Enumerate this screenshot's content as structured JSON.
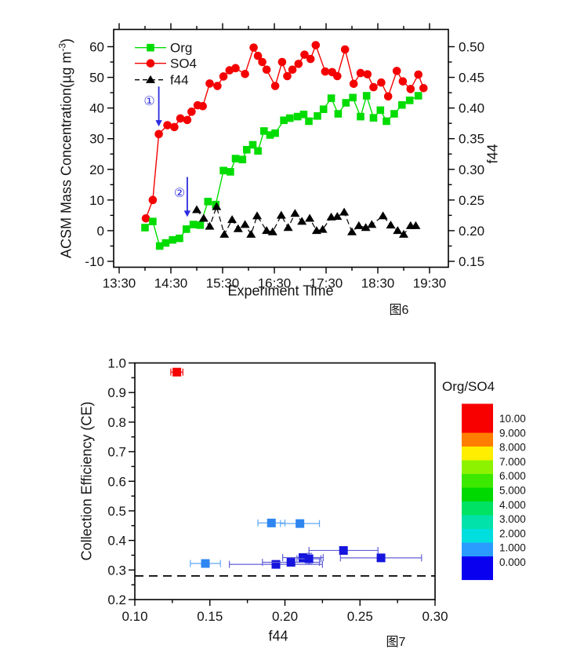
{
  "page": {
    "background": "#ffffff"
  },
  "chart_data": [
    {
      "id": "fig6",
      "type": "line",
      "caption": "图6",
      "x_axis": {
        "label": "Experiment Time",
        "tick_labels": [
          "13:30",
          "14:30",
          "15:30",
          "16:30",
          "17:30",
          "18:30",
          "19:30"
        ],
        "tick_minutes": [
          0,
          60,
          120,
          180,
          240,
          300,
          360
        ]
      },
      "y_left": {
        "label_main": "ACSM Mass Concentration(µg m",
        "label_sup": "-3",
        "label_end": ")",
        "ticks": [
          -10,
          0,
          10,
          20,
          30,
          40,
          50,
          60
        ],
        "range": [
          -10,
          60
        ]
      },
      "y_right": {
        "label": "f44",
        "ticks": [
          "0.15",
          "0.20",
          "0.25",
          "0.30",
          "0.35",
          "0.40",
          "0.45",
          "0.50"
        ],
        "range": [
          0.15,
          0.5
        ]
      },
      "legend": [
        {
          "name": "Org",
          "color": "#00dc00",
          "marker": "square",
          "dashed": false
        },
        {
          "name": "SO4",
          "color": "#f40000",
          "marker": "circle",
          "dashed": false
        },
        {
          "name": "f44",
          "color": "#000000",
          "marker": "triangle",
          "dashed": true
        }
      ],
      "series": {
        "org": {
          "axis": "left",
          "color": "#00dc00",
          "points": [
            [
              30,
              1
            ],
            [
              39,
              3
            ],
            [
              47,
              -5
            ],
            [
              54,
              -4
            ],
            [
              62,
              -3
            ],
            [
              70,
              -2.5
            ],
            [
              78,
              0.5
            ],
            [
              86,
              2
            ],
            [
              94,
              1.8
            ],
            [
              103,
              9.5
            ],
            [
              112,
              8.5
            ],
            [
              121,
              19.6
            ],
            [
              129,
              19.2
            ],
            [
              135,
              23.5
            ],
            [
              143,
              23.2
            ],
            [
              148,
              26.4
            ],
            [
              155,
              28
            ],
            [
              161,
              26
            ],
            [
              168,
              32.5
            ],
            [
              175,
              31.2
            ],
            [
              181,
              31.8
            ],
            [
              191,
              36
            ],
            [
              198,
              36.7
            ],
            [
              207,
              37.2
            ],
            [
              214,
              37.9
            ],
            [
              220,
              35.7
            ],
            [
              230,
              37.4
            ],
            [
              237,
              39.6
            ],
            [
              246,
              43.2
            ],
            [
              254,
              38.1
            ],
            [
              263,
              41.7
            ],
            [
              271,
              43.4
            ],
            [
              280,
              37.2
            ],
            [
              287,
              44
            ],
            [
              295,
              36.8
            ],
            [
              303,
              39.3
            ],
            [
              310,
              35.7
            ],
            [
              319,
              38.1
            ],
            [
              328,
              41
            ],
            [
              337,
              42.5
            ],
            [
              347,
              44
            ]
          ]
        },
        "so4": {
          "axis": "left",
          "color": "#f40000",
          "points": [
            [
              31,
              4
            ],
            [
              39,
              10
            ],
            [
              46,
              31.5
            ],
            [
              56,
              34.4
            ],
            [
              64,
              33.8
            ],
            [
              71,
              36.6
            ],
            [
              79,
              36.1
            ],
            [
              84,
              38.8
            ],
            [
              91,
              40.9
            ],
            [
              97,
              40.6
            ],
            [
              105,
              48
            ],
            [
              114,
              47.2
            ],
            [
              121,
              50.3
            ],
            [
              128,
              52.3
            ],
            [
              135,
              53
            ],
            [
              146,
              51.1
            ],
            [
              156,
              59.7
            ],
            [
              161,
              57
            ],
            [
              166,
              55
            ],
            [
              171,
              52.5
            ],
            [
              181,
              47.2
            ],
            [
              189,
              55
            ],
            [
              195,
              50.4
            ],
            [
              201,
              52.5
            ],
            [
              208,
              54.4
            ],
            [
              215,
              57.4
            ],
            [
              222,
              56
            ],
            [
              228,
              60.5
            ],
            [
              239,
              51.9
            ],
            [
              247,
              51.7
            ],
            [
              253,
              50.4
            ],
            [
              262,
              59.1
            ],
            [
              272,
              47.9
            ],
            [
              280,
              51.4
            ],
            [
              288,
              51
            ],
            [
              295,
              46.8
            ],
            [
              304,
              48.3
            ],
            [
              312,
              43.8
            ],
            [
              322,
              52.1
            ],
            [
              329,
              48.7
            ],
            [
              338,
              46.2
            ],
            [
              347,
              50.9
            ],
            [
              353,
              46.5
            ]
          ]
        },
        "f44": {
          "axis": "right",
          "color": "#000000",
          "points": [
            [
              90,
              0.234
            ],
            [
              98,
              0.22
            ],
            [
              105,
              0.207
            ],
            [
              113,
              0.239
            ],
            [
              122,
              0.194
            ],
            [
              131,
              0.218
            ],
            [
              138,
              0.203
            ],
            [
              146,
              0.21
            ],
            [
              153,
              0.194
            ],
            [
              160,
              0.224
            ],
            [
              171,
              0.2
            ],
            [
              178,
              0.198
            ],
            [
              188,
              0.225
            ],
            [
              196,
              0.205
            ],
            [
              204,
              0.228
            ],
            [
              212,
              0.215
            ],
            [
              221,
              0.22
            ],
            [
              229,
              0.2
            ],
            [
              236,
              0.202
            ],
            [
              246,
              0.222
            ],
            [
              253,
              0.223
            ],
            [
              261,
              0.23
            ],
            [
              270,
              0.198
            ],
            [
              278,
              0.208
            ],
            [
              286,
              0.205
            ],
            [
              293,
              0.21
            ],
            [
              306,
              0.224
            ],
            [
              315,
              0.209
            ],
            [
              323,
              0.2
            ],
            [
              330,
              0.194
            ],
            [
              338,
              0.208
            ],
            [
              344,
              0.208
            ]
          ]
        }
      },
      "annotations": [
        {
          "label": "①",
          "t": 46,
          "v_from": 47,
          "v_to": 34,
          "label_t": 35,
          "label_v": 42.5,
          "color": "#2b2be0"
        },
        {
          "label": "②",
          "t": 79,
          "v_from": 17.5,
          "v_to": 4.5,
          "label_t": 70,
          "label_v": 12.5,
          "color": "#2b2be0"
        }
      ]
    },
    {
      "id": "fig7",
      "type": "scatter",
      "caption": "图7",
      "x_axis": {
        "label": "f44",
        "ticks": [
          "0.10",
          "0.15",
          "0.20",
          "0.25",
          "0.30"
        ],
        "range": [
          0.1,
          0.3
        ]
      },
      "y_axis": {
        "label": "Collection Efficiency (CE)",
        "ticks": [
          "0.2",
          "0.3",
          "0.4",
          "0.5",
          "0.6",
          "0.7",
          "0.8",
          "0.9",
          "1.0"
        ],
        "range": [
          0.2,
          1.0
        ]
      },
      "reference_line": {
        "ce": 0.28,
        "style": "dashed",
        "color": "#000000"
      },
      "points": [
        {
          "f44": 0.128,
          "ce": 0.969,
          "xerr": 0.004,
          "yerr": 0.007,
          "fill": "#f40000",
          "err": "#f40000"
        },
        {
          "f44": 0.147,
          "ce": 0.322,
          "xerr": 0.01,
          "yerr": 0.006,
          "fill": "#2e86f0",
          "err": "#5fa8f5"
        },
        {
          "f44": 0.191,
          "ce": 0.459,
          "xerr": 0.009,
          "yerr": 0.006,
          "fill": "#2e86f0",
          "err": "#5fa8f5"
        },
        {
          "f44": 0.21,
          "ce": 0.457,
          "xerr": 0.013,
          "yerr": 0.006,
          "fill": "#2e86f0",
          "err": "#5fa8f5"
        },
        {
          "f44": 0.194,
          "ce": 0.319,
          "xerr": 0.031,
          "yerr": 0.007,
          "fill": "#1515de",
          "err": "#6060d8"
        },
        {
          "f44": 0.204,
          "ce": 0.326,
          "xerr": 0.019,
          "yerr": 0.007,
          "fill": "#1515de",
          "err": "#6060d8"
        },
        {
          "f44": 0.212,
          "ce": 0.342,
          "xerr": 0.0135,
          "yerr": 0.009,
          "fill": "#1515de",
          "err": "#6060d8"
        },
        {
          "f44": 0.216,
          "ce": 0.338,
          "xerr": 0.008,
          "yerr": 0.018,
          "fill": "#1515de",
          "err": "#6060d8"
        },
        {
          "f44": 0.239,
          "ce": 0.366,
          "xerr": 0.023,
          "yerr": 0.011,
          "fill": "#1515de",
          "err": "#6060d8"
        },
        {
          "f44": 0.264,
          "ce": 0.341,
          "xerr": 0.027,
          "yerr": 0.011,
          "fill": "#1515de",
          "err": "#6060d8"
        }
      ],
      "colorbar": {
        "title": "Org/SO4",
        "labels": [
          "10.00",
          "9.000",
          "8.000",
          "7.000",
          "6.000",
          "5.000",
          "4.000",
          "3.000",
          "2.000",
          "1.000",
          "0.000"
        ],
        "colors": [
          "#f80000",
          "#ff7d00",
          "#ffee00",
          "#8cf200",
          "#3ce800",
          "#00d900",
          "#00e263",
          "#00e2aa",
          "#00dede",
          "#2b9cff",
          "#0a00f0"
        ]
      }
    }
  ]
}
